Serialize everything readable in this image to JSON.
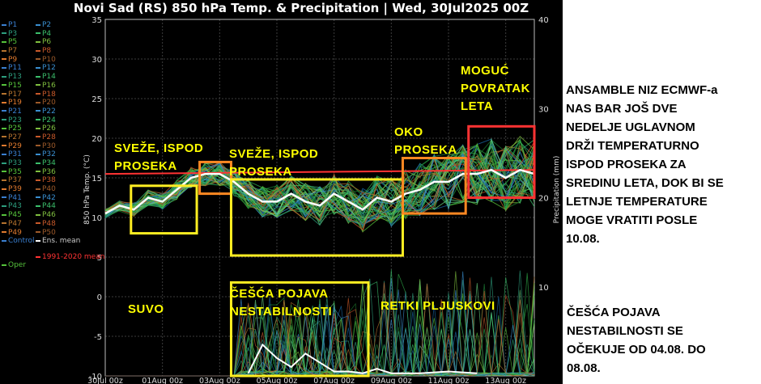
{
  "chart_data": {
    "type": "line",
    "title": "Novi Sad  (RS)  850 hPa Temp. & Precipitation | Wed, 30Jul2025 00Z",
    "ylabel": "850 hPa Temp. (°C)",
    "y2label": "Precipitation (mm)",
    "ylim": [
      -10,
      35
    ],
    "y2lim": [
      0,
      40
    ],
    "y_ticks": [
      "35",
      "30",
      "25",
      "20",
      "15",
      "10",
      "5",
      "0",
      "-5",
      "-10"
    ],
    "y2_ticks": [
      "40",
      "30",
      "20",
      "10"
    ],
    "x_ticks": [
      "30Jul 00z",
      "01Aug 00z",
      "03Aug 00z",
      "05Aug 00z",
      "07Aug 00z",
      "09Aug 00z",
      "11Aug 00z",
      "13Aug 00z"
    ],
    "x_days": [
      0,
      2,
      4,
      6,
      8,
      10,
      12,
      14
    ],
    "grid": true,
    "series": [
      {
        "name": "Ens. mean",
        "x": [
          0,
          0.5,
          1,
          1.5,
          2,
          2.5,
          3,
          3.5,
          4,
          4.5,
          5,
          5.5,
          6,
          6.5,
          7,
          7.5,
          8,
          8.5,
          9,
          9.5,
          10,
          10.5,
          11,
          11.5,
          12,
          12.5,
          13,
          13.5,
          14,
          14.5,
          15
        ],
        "values": [
          10.5,
          11.5,
          11.0,
          12.5,
          12.0,
          13.5,
          15.0,
          15.5,
          15.5,
          14.5,
          13.0,
          12.0,
          12.0,
          13.0,
          12.0,
          11.5,
          13.0,
          12.0,
          11.0,
          12.5,
          12.0,
          13.0,
          13.5,
          14.5,
          14.5,
          15.5,
          15.5,
          16.0,
          15.0,
          16.0,
          15.5
        ]
      },
      {
        "name": "Ens. mean precipitation",
        "axis": "right",
        "x": [
          5,
          5.5,
          6,
          6.5,
          7,
          7.5,
          8,
          8.5,
          9,
          9.5,
          10,
          11,
          12,
          13
        ],
        "values": [
          0.3,
          3.5,
          2.0,
          1.0,
          2.5,
          1.5,
          0.5,
          0.5,
          0.3,
          0.8,
          0.3,
          0.3,
          0.5,
          0.3
        ]
      },
      {
        "name": "1991-2020 mean",
        "x": [
          0,
          15
        ],
        "values": [
          15.5,
          16.0
        ]
      }
    ],
    "legend": {
      "placement": "left",
      "items": [
        "P1",
        "P2",
        "P3",
        "P4",
        "P5",
        "P6",
        "P7",
        "P8",
        "P9",
        "P10",
        "P11",
        "P12",
        "P13",
        "P14",
        "P15",
        "P16",
        "P17",
        "P18",
        "P19",
        "P20",
        "P21",
        "P22",
        "P23",
        "P24",
        "P25",
        "P26",
        "P27",
        "P28",
        "P29",
        "P30",
        "P31",
        "P32",
        "P33",
        "P34",
        "P35",
        "P36",
        "P37",
        "P38",
        "P39",
        "P40",
        "P41",
        "P42",
        "P43",
        "P44",
        "P45",
        "P46",
        "P47",
        "P48",
        "P49",
        "P50",
        "Control",
        "Ens. mean",
        "1991-2020 mean",
        "Oper"
      ]
    }
  },
  "annotations": {
    "box1_label": "SVEŽE, ISPOD\nPROSEKA",
    "box3_label": "SVEŽE, ISPOD\nPROSEKA",
    "box4_label": "OKO\nPROSEKA",
    "box5_label": "MOGUĆ\nPOVRATAK\nLETA",
    "dry_label": "SUVO",
    "unstable_label": "ČEŠĆA POJAVA\nNESTABILNOSTI",
    "showers_label": "RETKI PLJUSKOVI"
  },
  "side_notes": {
    "ensemble_note": "ANSAMBLE NIZ ECMWF-a\nNAS BAR JOŠ DVE\nNEDELJE UGLAVNOM\nDRŽI TEMPERATURNO\nISPOD PROSEKA ZA\nSREDINU LETA, DOK BI SE\nLETNJE TEMPERATURE\nMOGE VRATITI POSLE\n10.08.",
    "instability_note": "ČEŠĆA POJAVA\nNESTABILNOSTI SE\nOČEKUJE OD 04.08. DO\n08.08."
  },
  "colors": {
    "ensemble_mean": "#ffffff",
    "climate_mean": "#ff3333",
    "yellow_box": "#ffee22",
    "orange_box": "#ff8822",
    "red_box": "#ff3333"
  }
}
